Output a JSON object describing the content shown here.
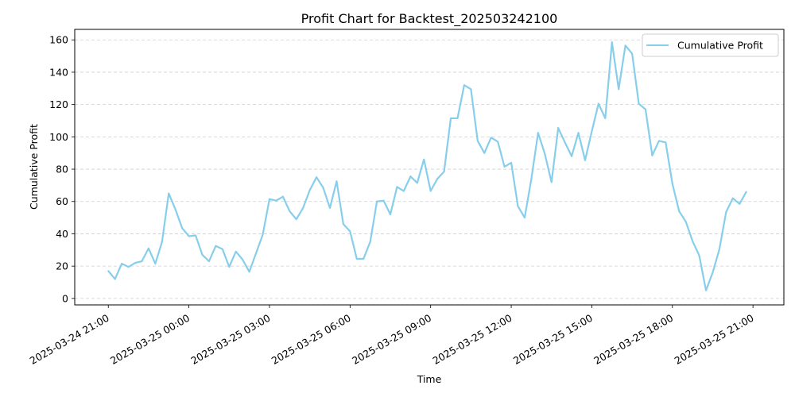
{
  "chart_data": {
    "type": "line",
    "title": "Profit Chart for Backtest_202503242100",
    "xlabel": "Time",
    "ylabel": "Cumulative Profit",
    "legend_position": "top-right",
    "grid": "y-dashed",
    "ylim": [
      -4,
      166.5
    ],
    "yticks": [
      0,
      20,
      40,
      60,
      80,
      100,
      120,
      140,
      160
    ],
    "ytick_labels": [
      "0",
      "20",
      "40",
      "60",
      "80",
      "100",
      "120",
      "140",
      "160"
    ],
    "xlim_hours": [
      -1.25,
      25.15
    ],
    "xticks_hours": [
      0,
      3,
      6,
      9,
      12,
      15,
      18,
      21,
      24
    ],
    "xtick_labels": [
      "2025-03-24 21:00",
      "2025-03-25 00:00",
      "2025-03-25 03:00",
      "2025-03-25 06:00",
      "2025-03-25 09:00",
      "2025-03-25 12:00",
      "2025-03-25 15:00",
      "2025-03-25 18:00",
      "2025-03-25 21:00"
    ],
    "x_start": "2025-03-24 21:00",
    "x_step_minutes": 15,
    "series": [
      {
        "name": "Cumulative Profit",
        "color": "#87CEEB",
        "values": [
          17,
          12,
          21.5,
          19.5,
          22,
          23,
          31,
          21.5,
          35,
          65,
          55,
          43.5,
          38.5,
          39,
          27,
          23,
          32.5,
          30.5,
          19.5,
          29,
          24,
          16.5,
          28,
          39.5,
          61.5,
          60.5,
          63,
          54,
          49,
          56,
          67,
          75,
          68.5,
          56,
          72.5,
          46,
          41.5,
          24.5,
          24.5,
          35,
          60,
          60.5,
          52,
          69,
          66.5,
          75.5,
          71.5,
          86,
          66.5,
          74,
          78.5,
          111.5,
          111.5,
          132,
          129.5,
          97.5,
          90,
          99.5,
          97,
          81.5,
          84,
          57,
          50,
          74,
          102.5,
          89.5,
          72,
          105.5,
          96.5,
          88,
          102.5,
          85.5,
          103.5,
          120.5,
          111.5,
          158.5,
          129.5,
          156.5,
          151.5,
          120.5,
          117,
          88.5,
          97.5,
          96.5,
          71,
          54,
          47.5,
          35.5,
          26.5,
          5,
          16,
          30.5,
          53.5,
          62,
          58.5,
          66
        ]
      }
    ]
  }
}
